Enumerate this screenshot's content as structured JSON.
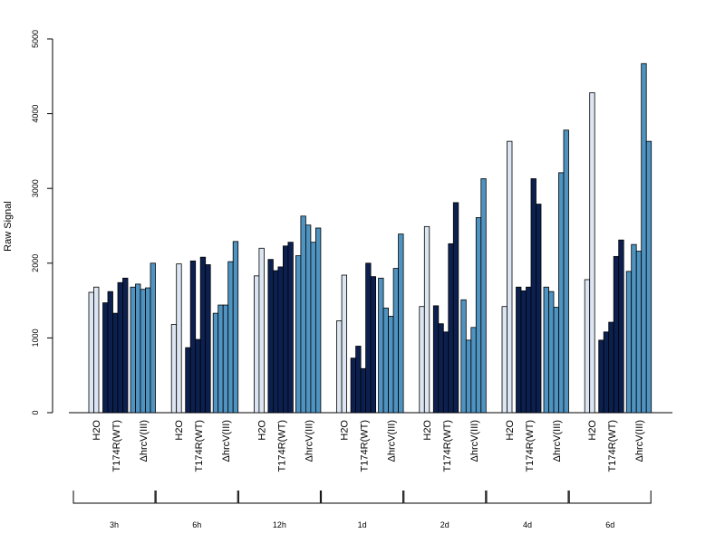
{
  "chart_data": {
    "type": "bar",
    "ylabel": "Raw Signal",
    "ylim": [
      0,
      5000
    ],
    "yticks": [
      0,
      1000,
      2000,
      3000,
      4000,
      5000
    ],
    "grid": false,
    "colors": {
      "H2O": "#dce6f2",
      "T174R(WT)": "#0c2050",
      "ΔhrcV(III)": "#4f93c1"
    },
    "time_points": [
      "3h",
      "6h",
      "12h",
      "1d",
      "2d",
      "4d",
      "6d"
    ],
    "treatments": [
      "H2O",
      "T174R(WT)",
      "ΔhrcV(III)"
    ],
    "groups": [
      {
        "time": "3h",
        "series": [
          {
            "treatment": "H2O",
            "values": [
              1610,
              1680
            ]
          },
          {
            "treatment": "T174R(WT)",
            "values": [
              1470,
              1620,
              1330,
              1740,
              1800
            ]
          },
          {
            "treatment": "ΔhrcV(III)",
            "values": [
              1680,
              1720,
              1650,
              1670,
              2000
            ]
          }
        ]
      },
      {
        "time": "6h",
        "series": [
          {
            "treatment": "H2O",
            "values": [
              1180,
              1990
            ]
          },
          {
            "treatment": "T174R(WT)",
            "values": [
              870,
              2030,
              980,
              2080,
              1980
            ]
          },
          {
            "treatment": "ΔhrcV(III)",
            "values": [
              1330,
              1440,
              1440,
              2020,
              2290
            ]
          }
        ]
      },
      {
        "time": "12h",
        "series": [
          {
            "treatment": "H2O",
            "values": [
              1830,
              2200
            ]
          },
          {
            "treatment": "T174R(WT)",
            "values": [
              2050,
              1900,
              1950,
              2230,
              2280
            ]
          },
          {
            "treatment": "ΔhrcV(III)",
            "values": [
              2100,
              2630,
              2510,
              2280,
              2470
            ]
          }
        ]
      },
      {
        "time": "1d",
        "series": [
          {
            "treatment": "H2O",
            "values": [
              1230,
              1840
            ]
          },
          {
            "treatment": "T174R(WT)",
            "values": [
              730,
              890,
              590,
              2000,
              1820
            ]
          },
          {
            "treatment": "ΔhrcV(III)",
            "values": [
              1800,
              1400,
              1290,
              1930,
              2390
            ]
          }
        ]
      },
      {
        "time": "2d",
        "series": [
          {
            "treatment": "H2O",
            "values": [
              1420,
              2490
            ]
          },
          {
            "treatment": "T174R(WT)",
            "values": [
              1430,
              1190,
              1080,
              2260,
              2810
            ]
          },
          {
            "treatment": "ΔhrcV(III)",
            "values": [
              1510,
              970,
              1140,
              2610,
              3130
            ]
          }
        ]
      },
      {
        "time": "4d",
        "series": [
          {
            "treatment": "H2O",
            "values": [
              1420,
              3630
            ]
          },
          {
            "treatment": "T174R(WT)",
            "values": [
              1680,
              1630,
              1680,
              3130,
              2790
            ]
          },
          {
            "treatment": "ΔhrcV(III)",
            "values": [
              1680,
              1620,
              1410,
              3210,
              3780
            ]
          }
        ]
      },
      {
        "time": "6d",
        "series": [
          {
            "treatment": "H2O",
            "values": [
              1780,
              4280
            ]
          },
          {
            "treatment": "T174R(WT)",
            "values": [
              970,
              1080,
              1210,
              2090,
              2310
            ]
          },
          {
            "treatment": "ΔhrcV(III)",
            "values": [
              1890,
              2250,
              2160,
              4670,
              3630
            ]
          }
        ]
      }
    ]
  }
}
